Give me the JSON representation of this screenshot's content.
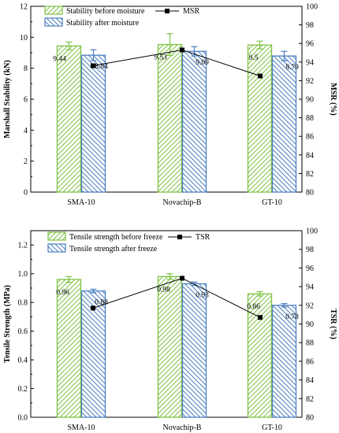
{
  "chart_data": [
    {
      "type": "bar",
      "categories": [
        "SMA-10",
        "Novachip-B",
        "GT-10"
      ],
      "series": [
        {
          "name": "Stability before moisture",
          "values": [
            9.44,
            9.53,
            9.5
          ],
          "errors": [
            0.25,
            0.7,
            0.25
          ],
          "color": "#7dc242",
          "hatch": "forward"
        },
        {
          "name": "Stability after moisture",
          "values": [
            8.84,
            9.09,
            8.79
          ],
          "errors": [
            0.35,
            0.3,
            0.3
          ],
          "color": "#4a7fc1",
          "hatch": "back"
        }
      ],
      "line_series": {
        "name": "MSR",
        "values": [
          93.6,
          95.3,
          92.5
        ],
        "color": "#000000"
      },
      "labels": [
        "9.44",
        "8.84",
        "9.53",
        "9.09",
        "9.5",
        "8.79"
      ],
      "ylabel": "Marshall Stability (kN)",
      "y2label": "MSR (%)",
      "ylim": [
        0,
        12
      ],
      "y2lim": [
        80,
        100
      ],
      "yticks": [
        "0",
        "2",
        "4",
        "6",
        "8",
        "10",
        "12"
      ],
      "y2ticks": [
        "80",
        "82",
        "84",
        "86",
        "88",
        "90",
        "92",
        "94",
        "96",
        "98",
        "100"
      ],
      "legend_position": "top-left"
    },
    {
      "type": "bar",
      "categories": [
        "SMA-10",
        "Novachip-B",
        "GT-10"
      ],
      "series": [
        {
          "name": "Tensile strength before freeze",
          "values": [
            0.96,
            0.98,
            0.86
          ],
          "errors": [
            0.02,
            0.02,
            0.015
          ],
          "color": "#7dc242",
          "hatch": "forward"
        },
        {
          "name": "Tensile strength after freeze",
          "values": [
            0.88,
            0.93,
            0.78
          ],
          "errors": [
            0.012,
            0.012,
            0.012
          ],
          "color": "#4a7fc1",
          "hatch": "back"
        }
      ],
      "line_series": {
        "name": "TSR",
        "values": [
          91.7,
          94.9,
          90.7
        ],
        "color": "#000000"
      },
      "labels": [
        "0.96",
        "0.88",
        "0.98",
        "0.93",
        "0.86",
        "0.78"
      ],
      "ylabel": "Tensile Strength (MPa)",
      "y2label": "TSR (%)",
      "ylim": [
        0,
        1.3
      ],
      "y2lim": [
        80,
        100
      ],
      "yticks": [
        "0.0",
        "0.2",
        "0.4",
        "0.6",
        "0.8",
        "1.0",
        "1.2"
      ],
      "y2ticks": [
        "80",
        "82",
        "84",
        "86",
        "88",
        "90",
        "92",
        "94",
        "96",
        "98",
        "100"
      ],
      "legend_position": "top-left"
    }
  ]
}
